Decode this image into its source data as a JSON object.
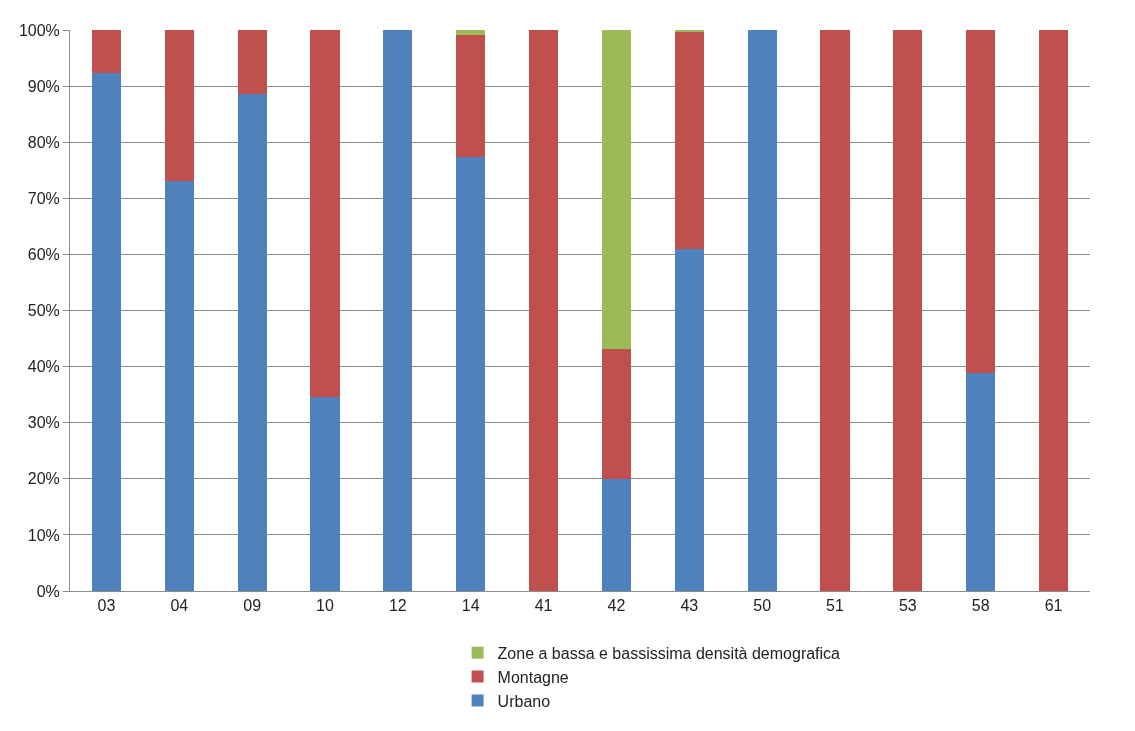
{
  "chart_data": {
    "type": "bar",
    "stacked": true,
    "categories": [
      "03",
      "04",
      "09",
      "10",
      "12",
      "14",
      "41",
      "42",
      "43",
      "50",
      "51",
      "53",
      "58",
      "61"
    ],
    "series": [
      {
        "name": "Urbano",
        "color": "#4f81bd",
        "values": [
          92.4,
          73.1,
          88.6,
          34.5,
          100,
          77.4,
          0,
          19.9,
          61.0,
          100,
          0,
          0,
          38.8,
          0
        ]
      },
      {
        "name": "Montagne",
        "color": "#c0504d",
        "values": [
          7.6,
          26.9,
          11.4,
          65.5,
          0,
          21.7,
          100,
          23.3,
          38.6,
          0,
          100,
          100,
          61.2,
          100
        ]
      },
      {
        "name": "Zone a bassa e bassissima densità demografica",
        "color": "#9bbb59",
        "values": [
          0,
          0,
          0,
          0,
          0,
          0.9,
          0,
          56.8,
          0.4,
          0,
          0,
          0,
          0,
          0
        ]
      }
    ],
    "ylim": [
      0,
      100
    ],
    "yticks": [
      {
        "value": 0,
        "label": "0%"
      },
      {
        "value": 10,
        "label": "10%"
      },
      {
        "value": 20,
        "label": "20%"
      },
      {
        "value": 30,
        "label": "30%"
      },
      {
        "value": 40,
        "label": "40%"
      },
      {
        "value": 50,
        "label": "50%"
      },
      {
        "value": 60,
        "label": "60%"
      },
      {
        "value": 70,
        "label": "70%"
      },
      {
        "value": 80,
        "label": "80%"
      },
      {
        "value": 90,
        "label": "90%"
      },
      {
        "value": 100,
        "label": "100%"
      }
    ],
    "grid": "y",
    "legend": "bottom"
  }
}
